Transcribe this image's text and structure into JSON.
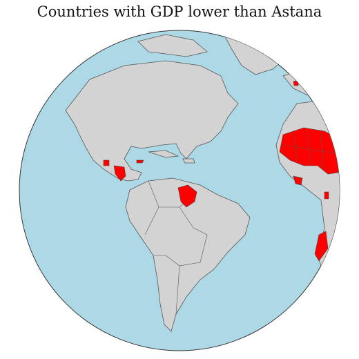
{
  "title": "Countries with GDP lower than Astana"
}
